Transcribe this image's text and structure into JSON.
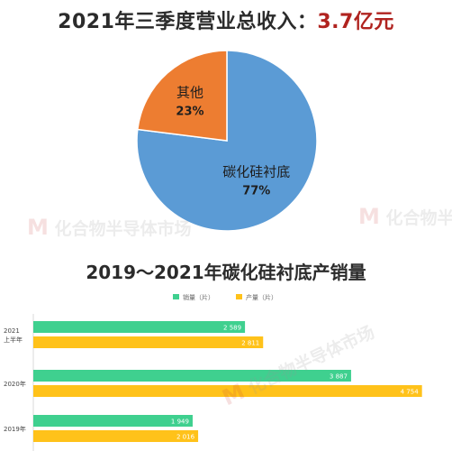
{
  "headline": {
    "prefix": "2021年三季度营业总收入：",
    "highlight": "3.7亿元",
    "highlight_color": "#b0231f"
  },
  "section_title": "2019～2021年碳化硅衬底产销量",
  "watermark": "化合物半导体市场",
  "chart_data": [
    {
      "type": "pie",
      "slices": [
        {
          "label": "碳化硅衬底",
          "value": 77,
          "value_label": "77%",
          "color": "#5b9bd5"
        },
        {
          "label": "其他",
          "value": 23,
          "value_label": "23%",
          "color": "#ed7d31"
        }
      ]
    },
    {
      "type": "bar",
      "orientation": "horizontal",
      "categories": [
        "2021\n上半年",
        "2020年",
        "2019年"
      ],
      "series": [
        {
          "name": "销量（片）",
          "color": "#3fd08f",
          "values": [
            2589,
            3887,
            1949
          ],
          "labels": [
            "2 589",
            "3 887",
            "1 949"
          ]
        },
        {
          "name": "产量（片）",
          "color": "#ffc21a",
          "values": [
            2811,
            4754,
            2016
          ],
          "labels": [
            "2 811",
            "4 754",
            "2 016"
          ]
        }
      ],
      "xlim": [
        0,
        5000
      ],
      "legend": "top-center"
    }
  ]
}
